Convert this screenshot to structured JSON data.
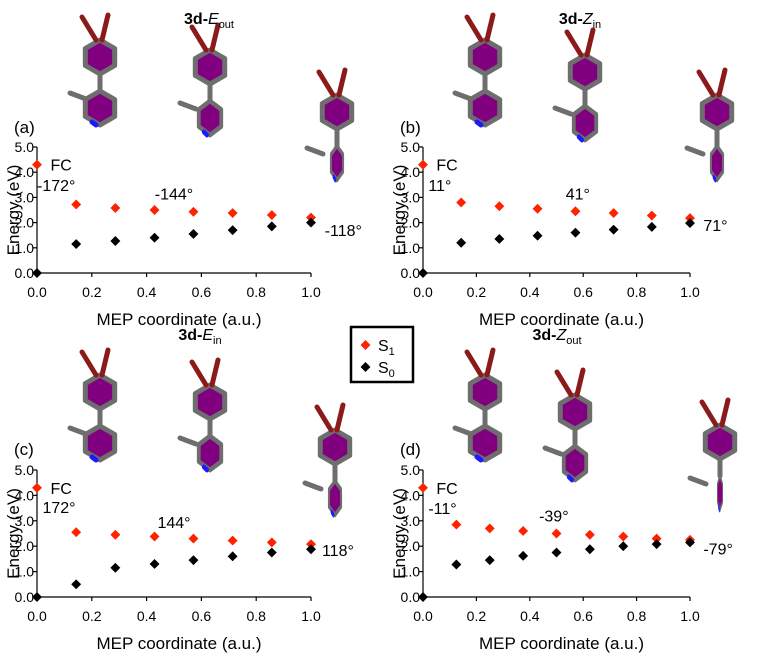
{
  "colors": {
    "S1": "#ff2200",
    "S0": "#000000",
    "ring": "#800080",
    "bond": "#6e6e6e",
    "nitrogen": "#1a1aff",
    "bromine": "#8b1a1a"
  },
  "legend": {
    "items": [
      {
        "label": "S",
        "sub": "1",
        "color": "#ff2200"
      },
      {
        "label": "S",
        "sub": "0",
        "color": "#000000"
      }
    ]
  },
  "chart_data": [
    {
      "type": "scatter",
      "panel": "(a)",
      "title_prefix": "3d-",
      "title_main": "E",
      "title_sub": "out",
      "xlabel": "MEP coordinate (a.u.)",
      "ylabel": "Energy (eV)",
      "xlim": [
        0,
        1
      ],
      "ylim": [
        0,
        5
      ],
      "xticks": [
        "0.0",
        "0.2",
        "0.4",
        "0.6",
        "0.8",
        "1.0"
      ],
      "yticks": [
        "0.0",
        "1.0",
        "2.0",
        "3.0",
        "4.0",
        "5.0"
      ],
      "series": [
        {
          "name": "S1",
          "x": [
            0,
            0.143,
            0.286,
            0.429,
            0.571,
            0.714,
            0.857,
            1.0
          ],
          "y": [
            4.3,
            2.72,
            2.58,
            2.5,
            2.43,
            2.38,
            2.3,
            2.2
          ]
        },
        {
          "name": "S0",
          "x": [
            0,
            0.143,
            0.286,
            0.429,
            0.571,
            0.714,
            0.857,
            1.0
          ],
          "y": [
            0.0,
            1.15,
            1.27,
            1.4,
            1.55,
            1.7,
            1.85,
            2.0
          ]
        }
      ],
      "annotations": [
        {
          "text": "FC",
          "x": 0.02,
          "y": 4.3
        },
        {
          "text": "-172°",
          "x": 0.0,
          "y": 3.5
        },
        {
          "text": "-144°",
          "x": 0.5,
          "y": 3.15
        },
        {
          "text": "-118°",
          "x": 1.05,
          "y": 1.7
        }
      ]
    },
    {
      "type": "scatter",
      "panel": "(b)",
      "title_prefix": "3d-",
      "title_main": "Z",
      "title_sub": "in",
      "xlabel": "MEP coordinate (a.u.)",
      "ylabel": "Energy (eV)",
      "xlim": [
        0,
        1
      ],
      "ylim": [
        0,
        5
      ],
      "xticks": [
        "0.0",
        "0.2",
        "0.4",
        "0.6",
        "0.8",
        "1.0"
      ],
      "yticks": [
        "0.0",
        "1.0",
        "2.0",
        "3.0",
        "4.0",
        "5.0"
      ],
      "series": [
        {
          "name": "S1",
          "x": [
            0,
            0.143,
            0.286,
            0.429,
            0.571,
            0.714,
            0.857,
            1.0
          ],
          "y": [
            4.3,
            2.8,
            2.65,
            2.55,
            2.45,
            2.38,
            2.28,
            2.18
          ]
        },
        {
          "name": "S0",
          "x": [
            0,
            0.143,
            0.286,
            0.429,
            0.571,
            0.714,
            0.857,
            1.0
          ],
          "y": [
            0.0,
            1.2,
            1.35,
            1.48,
            1.6,
            1.72,
            1.83,
            1.98
          ]
        }
      ],
      "annotations": [
        {
          "text": "FC",
          "x": 0.02,
          "y": 4.3
        },
        {
          "text": "11°",
          "x": 0.02,
          "y": 3.5
        },
        {
          "text": "41°",
          "x": 0.58,
          "y": 3.15
        },
        {
          "text": "71°",
          "x": 1.05,
          "y": 1.9
        }
      ]
    },
    {
      "type": "scatter",
      "panel": "(c)",
      "title_prefix": "3d-",
      "title_main": "E",
      "title_sub": "in",
      "xlabel": "MEP coordinate (a.u.)",
      "ylabel": "Energy (eV)",
      "xlim": [
        0,
        1
      ],
      "ylim": [
        0,
        5
      ],
      "xticks": [
        "0.0",
        "0.2",
        "0.4",
        "0.6",
        "0.8",
        "1.0"
      ],
      "yticks": [
        "0.0",
        "1.0",
        "2.0",
        "3.0",
        "4.0",
        "5.0"
      ],
      "series": [
        {
          "name": "S1",
          "x": [
            0,
            0.143,
            0.286,
            0.429,
            0.571,
            0.714,
            0.857,
            1.0
          ],
          "y": [
            4.3,
            2.55,
            2.45,
            2.38,
            2.3,
            2.22,
            2.15,
            2.08
          ]
        },
        {
          "name": "S0",
          "x": [
            0,
            0.143,
            0.286,
            0.429,
            0.571,
            0.714,
            0.857,
            1.0
          ],
          "y": [
            0.0,
            0.5,
            1.15,
            1.3,
            1.45,
            1.6,
            1.75,
            1.88
          ]
        }
      ],
      "annotations": [
        {
          "text": "FC",
          "x": 0.02,
          "y": 4.3
        },
        {
          "text": "172°",
          "x": 0.02,
          "y": 3.55
        },
        {
          "text": "144°",
          "x": 0.5,
          "y": 2.95
        },
        {
          "text": "118°",
          "x": 1.04,
          "y": 1.85
        }
      ]
    },
    {
      "type": "scatter",
      "panel": "(d)",
      "title_prefix": "3d-",
      "title_main": "Z",
      "title_sub": "out",
      "xlabel": "MEP coordinate (a.u.)",
      "ylabel": "Energy (eV)",
      "xlim": [
        0,
        1
      ],
      "ylim": [
        0,
        5
      ],
      "xticks": [
        "0.0",
        "0.2",
        "0.4",
        "0.6",
        "0.8",
        "1.0"
      ],
      "yticks": [
        "0.0",
        "1.0",
        "2.0",
        "3.0",
        "4.0",
        "5.0"
      ],
      "series": [
        {
          "name": "S1",
          "x": [
            0,
            0.125,
            0.25,
            0.375,
            0.5,
            0.625,
            0.75,
            0.875,
            1.0
          ],
          "y": [
            4.3,
            2.85,
            2.7,
            2.6,
            2.5,
            2.45,
            2.38,
            2.3,
            2.25
          ]
        },
        {
          "name": "S0",
          "x": [
            0,
            0.125,
            0.25,
            0.375,
            0.5,
            0.625,
            0.75,
            0.875,
            1.0
          ],
          "y": [
            0.0,
            1.28,
            1.45,
            1.62,
            1.75,
            1.88,
            2.0,
            2.08,
            2.15
          ]
        }
      ],
      "annotations": [
        {
          "text": "FC",
          "x": 0.02,
          "y": 4.3
        },
        {
          "text": "-11°",
          "x": 0.02,
          "y": 3.5
        },
        {
          "text": "-39°",
          "x": 0.49,
          "y": 3.2
        },
        {
          "text": "-79°",
          "x": 1.05,
          "y": 1.9
        }
      ]
    }
  ]
}
